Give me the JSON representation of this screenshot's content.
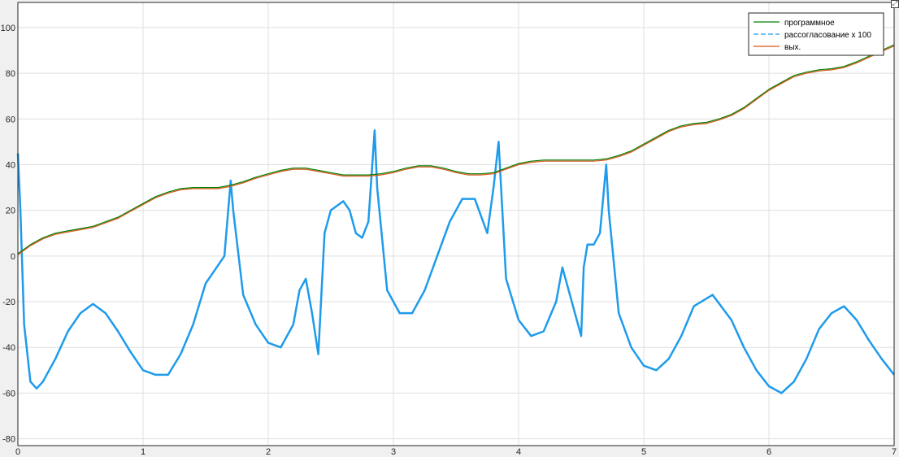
{
  "figure": {
    "expand_icon_glyph": "⤢"
  },
  "chart_data": {
    "type": "line",
    "title": "",
    "xlabel": "",
    "ylabel": "",
    "xlim": [
      0,
      7
    ],
    "ylim": [
      -83,
      111
    ],
    "grid": true,
    "legend_position": "top-right",
    "xticks": [
      0,
      1,
      2,
      3,
      4,
      5,
      6,
      7
    ],
    "xtick_labels": [
      "0",
      "1",
      "2",
      "3",
      "4",
      "5",
      "6",
      "7"
    ],
    "yticks": [
      -80,
      -60,
      -40,
      -20,
      0,
      20,
      40,
      60,
      80,
      100
    ],
    "ytick_labels": [
      "-80",
      "-60",
      "-40",
      "-20",
      "0",
      "20",
      "40",
      "60",
      "80",
      "100"
    ],
    "series": [
      {
        "name": "программное",
        "color": "#008000",
        "style": "solid",
        "x": [
          0,
          0.1,
          0.2,
          0.3,
          0.4,
          0.5,
          0.6,
          0.7,
          0.8,
          0.9,
          1.0,
          1.1,
          1.2,
          1.3,
          1.4,
          1.5,
          1.6,
          1.7,
          1.8,
          1.9,
          2.0,
          2.1,
          2.2,
          2.3,
          2.4,
          2.5,
          2.6,
          2.7,
          2.8,
          2.9,
          3.0,
          3.1,
          3.2,
          3.3,
          3.4,
          3.5,
          3.6,
          3.7,
          3.8,
          3.9,
          4.0,
          4.1,
          4.2,
          4.3,
          4.4,
          4.5,
          4.6,
          4.7,
          4.8,
          4.9,
          5.0,
          5.1,
          5.2,
          5.3,
          5.4,
          5.5,
          5.6,
          5.7,
          5.8,
          5.9,
          6.0,
          6.1,
          6.2,
          6.3,
          6.4,
          6.5,
          6.6,
          6.7,
          6.8,
          6.9,
          7.0
        ],
        "y": [
          1,
          5,
          8,
          10,
          11,
          12,
          13,
          15,
          17,
          20,
          23,
          26,
          28,
          29.5,
          30,
          30,
          30,
          31,
          32.5,
          34.5,
          36,
          37.5,
          38.5,
          38.5,
          37.5,
          36.5,
          35.5,
          35.5,
          35.5,
          36,
          37,
          38.5,
          39.5,
          39.5,
          38.5,
          37,
          36,
          36,
          36.5,
          38.5,
          40.5,
          41.5,
          42,
          42,
          42,
          42,
          42,
          42.5,
          44,
          46,
          49,
          52,
          55,
          57,
          58,
          58.5,
          60,
          62,
          65,
          69,
          73,
          76,
          79,
          80.5,
          81.5,
          82,
          83,
          85,
          87.5,
          90,
          92.5
        ]
      },
      {
        "name": "рассогласование x 100",
        "color": "#1E9BEB",
        "style": "dashed",
        "x": [
          0,
          0.02,
          0.05,
          0.1,
          0.15,
          0.2,
          0.3,
          0.4,
          0.5,
          0.6,
          0.7,
          0.8,
          0.9,
          1.0,
          1.1,
          1.2,
          1.3,
          1.4,
          1.5,
          1.6,
          1.65,
          1.7,
          1.72,
          1.8,
          1.9,
          2.0,
          2.1,
          2.2,
          2.25,
          2.3,
          2.35,
          2.4,
          2.45,
          2.5,
          2.6,
          2.65,
          2.7,
          2.75,
          2.8,
          2.85,
          2.87,
          2.95,
          3.05,
          3.15,
          3.25,
          3.35,
          3.45,
          3.55,
          3.65,
          3.75,
          3.8,
          3.84,
          3.9,
          4.0,
          4.1,
          4.2,
          4.3,
          4.35,
          4.4,
          4.5,
          4.52,
          4.55,
          4.6,
          4.65,
          4.7,
          4.72,
          4.8,
          4.9,
          5.0,
          5.1,
          5.2,
          5.3,
          5.4,
          5.55,
          5.7,
          5.8,
          5.9,
          6.0,
          6.1,
          6.2,
          6.3,
          6.4,
          6.5,
          6.6,
          6.7,
          6.8,
          6.9,
          7.0
        ],
        "y": [
          45,
          20,
          -30,
          -55,
          -58,
          -55,
          -45,
          -33,
          -25,
          -21,
          -25,
          -33,
          -42,
          -50,
          -52,
          -52,
          -43,
          -30,
          -12,
          -4,
          0,
          33,
          20,
          -17,
          -30,
          -38,
          -40,
          -30,
          -15,
          -10,
          -25,
          -43,
          10,
          20,
          24,
          20,
          10,
          8,
          15,
          55,
          30,
          -15,
          -25,
          -25,
          -15,
          0,
          15,
          25,
          25,
          10,
          30,
          50,
          -10,
          -28,
          -35,
          -33,
          -20,
          -5,
          -15,
          -35,
          -5,
          5,
          5,
          10,
          40,
          20,
          -25,
          -40,
          -48,
          -50,
          -45,
          -35,
          -22,
          -17,
          -28,
          -40,
          -50,
          -57,
          -60,
          -55,
          -45,
          -32,
          -25,
          -22,
          -28,
          -37,
          -45,
          -52
        ]
      },
      {
        "name": "вых.",
        "color": "#D95319",
        "style": "solid",
        "x": [
          0,
          0.1,
          0.2,
          0.3,
          0.4,
          0.5,
          0.6,
          0.7,
          0.8,
          0.9,
          1.0,
          1.1,
          1.2,
          1.3,
          1.4,
          1.5,
          1.6,
          1.7,
          1.8,
          1.9,
          2.0,
          2.1,
          2.2,
          2.3,
          2.4,
          2.5,
          2.6,
          2.7,
          2.8,
          2.9,
          3.0,
          3.1,
          3.2,
          3.3,
          3.4,
          3.5,
          3.6,
          3.7,
          3.8,
          3.9,
          4.0,
          4.1,
          4.2,
          4.3,
          4.4,
          4.5,
          4.6,
          4.7,
          4.8,
          4.9,
          5.0,
          5.1,
          5.2,
          5.3,
          5.4,
          5.5,
          5.6,
          5.7,
          5.8,
          5.9,
          6.0,
          6.1,
          6.2,
          6.3,
          6.4,
          6.5,
          6.6,
          6.7,
          6.8,
          6.9,
          7.0
        ],
        "y": [
          0.5,
          4.5,
          7.5,
          9.5,
          10.5,
          11.5,
          12.5,
          14.5,
          16.5,
          19.5,
          22.5,
          25.5,
          27.5,
          29,
          29.5,
          29.5,
          29.5,
          30.5,
          32,
          34,
          35.5,
          37,
          38,
          38,
          37,
          36,
          35,
          35,
          35,
          35.5,
          36.5,
          38,
          39,
          39,
          38,
          36.5,
          35.5,
          35.5,
          36,
          38,
          40,
          41,
          41.5,
          41.5,
          41.5,
          41.5,
          41.5,
          42,
          43.5,
          45.5,
          48.5,
          51.5,
          54.5,
          56.5,
          57.5,
          58,
          59.5,
          61.5,
          64.5,
          68.5,
          72.5,
          75.5,
          78.5,
          80,
          81,
          81.5,
          82.5,
          84.5,
          87,
          89.5,
          92
        ]
      }
    ]
  }
}
